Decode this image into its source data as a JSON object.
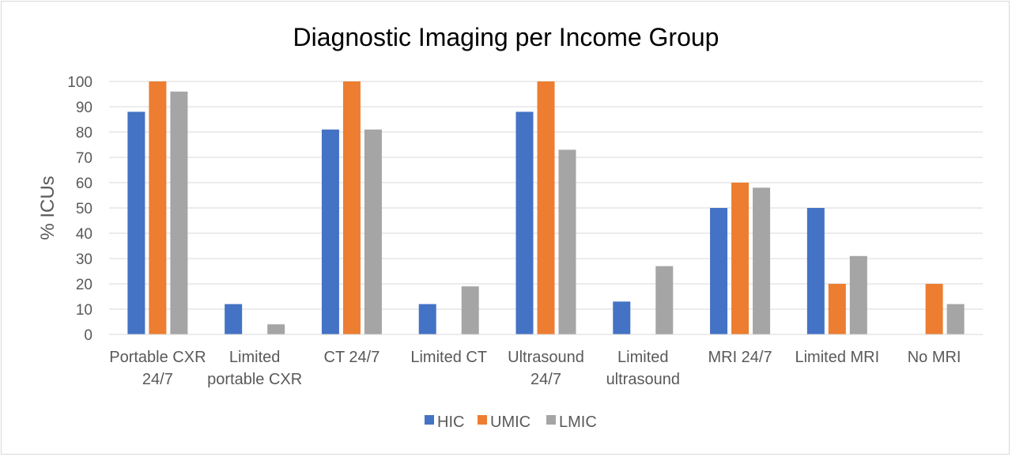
{
  "chart_data": {
    "type": "bar",
    "title": "Diagnostic Imaging per Income Group",
    "xlabel": "",
    "ylabel": "% ICUs",
    "ylim": [
      0,
      100
    ],
    "yticks": [
      0,
      10,
      20,
      30,
      40,
      50,
      60,
      70,
      80,
      90,
      100
    ],
    "grid": true,
    "legend_position": "bottom",
    "categories": [
      [
        "Portable CXR",
        "24/7"
      ],
      [
        "Limited",
        "portable CXR"
      ],
      [
        "CT 24/7"
      ],
      [
        "Limited CT"
      ],
      [
        "Ultrasound",
        "24/7"
      ],
      [
        "Limited",
        "ultrasound"
      ],
      [
        "MRI 24/7"
      ],
      [
        "Limited MRI"
      ],
      [
        "No MRI"
      ]
    ],
    "series": [
      {
        "name": "HIC",
        "color": "#4472c4",
        "values": [
          88,
          12,
          81,
          12,
          88,
          13,
          50,
          50,
          0
        ]
      },
      {
        "name": "UMIC",
        "color": "#ed7d31",
        "values": [
          100,
          0,
          100,
          0,
          100,
          0,
          60,
          20,
          20
        ]
      },
      {
        "name": "LMIC",
        "color": "#a5a5a5",
        "values": [
          96,
          4,
          81,
          19,
          73,
          27,
          58,
          31,
          12
        ]
      }
    ]
  }
}
